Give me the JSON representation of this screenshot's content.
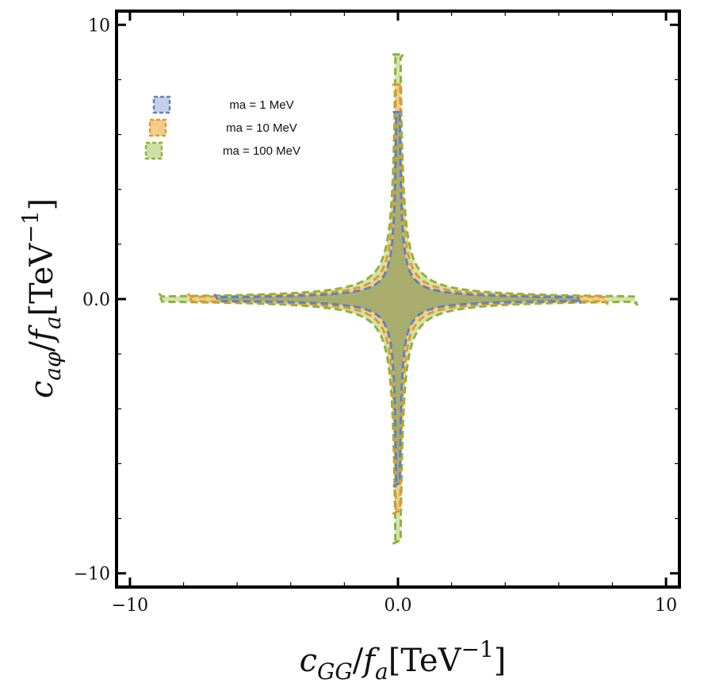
{
  "chart_data": {
    "type": "area",
    "xlabel": "c_GG / f_a [TeV^-1]",
    "ylabel": "c_aφ / f_a [TeV^-1]",
    "xlabel_parts": {
      "c": "c",
      "sub": "GG",
      "slash": "/",
      "f": "f",
      "fsub": "a",
      "unit": "[TeV",
      "exp": "−1",
      "close": "]"
    },
    "ylabel_parts": {
      "c": "c",
      "sub": "aφ",
      "slash": "/",
      "f": "f",
      "fsub": "a",
      "unit": "[TeV",
      "exp": "−1",
      "close": "]"
    },
    "xlim": [
      -10.5,
      10.5
    ],
    "ylim": [
      -10.5,
      10.5
    ],
    "x_ticks": [
      {
        "value": -10,
        "label": "−10"
      },
      {
        "value": 0,
        "label": "0.0"
      },
      {
        "value": 10,
        "label": "10"
      }
    ],
    "y_ticks": [
      {
        "value": 10,
        "label": "10"
      },
      {
        "value": 0,
        "label": "0.0"
      },
      {
        "value": -10,
        "label": "−10"
      }
    ],
    "legend_position": "top-left",
    "series": [
      {
        "name": "ma = 100 MeV",
        "label": "ma = 100 MeV",
        "color": "#8db33c",
        "fill": "#cfe0a4",
        "curve": {
          "k": 0.85,
          "tip": 8.8,
          "width": 0.35
        }
      },
      {
        "name": "ma = 10 MeV",
        "label": "ma = 10 MeV",
        "color": "#e3992c",
        "fill": "#f1cd8c",
        "curve": {
          "k": 0.62,
          "tip": 7.7,
          "width": 0.3
        }
      },
      {
        "name": "ma = 1 MeV",
        "label": "ma = 1 MeV",
        "color": "#5f83bd",
        "fill": "#a3ab6c",
        "curve": {
          "k": 0.45,
          "tip": 6.7,
          "width": 0.28
        }
      }
    ]
  }
}
